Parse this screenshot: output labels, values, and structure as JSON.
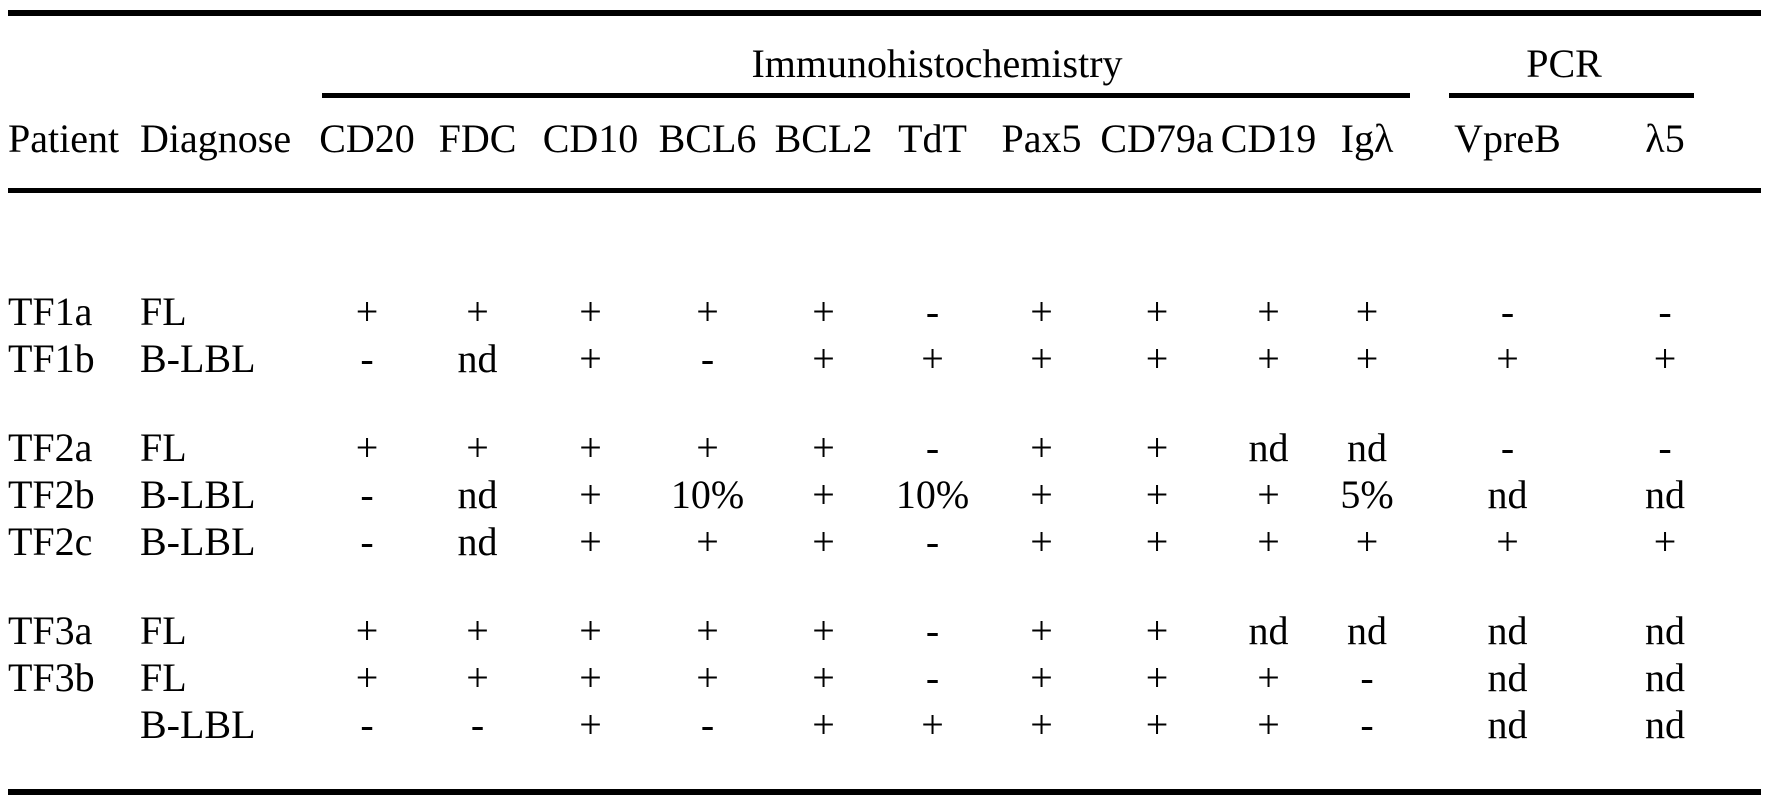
{
  "table": {
    "group_headers": [
      {
        "label": "Immunohistochemistry"
      },
      {
        "label": "PCR"
      }
    ],
    "columns": [
      "Patient",
      "Diagnose",
      "CD20",
      "FDC",
      "CD10",
      "BCL6",
      "BCL2",
      "TdT",
      "Pax5",
      "CD79a",
      "CD19",
      "Igλ",
      "VpreB",
      "λ5"
    ],
    "rows": [
      {
        "group": 1,
        "patient": "TF1a",
        "diagnose": "FL",
        "values": [
          "+",
          "+",
          "+",
          "+",
          "+",
          "-",
          "+",
          "+",
          "+",
          "+",
          "-",
          "-"
        ]
      },
      {
        "group": 1,
        "patient": "TF1b",
        "diagnose": "B-LBL",
        "values": [
          "-",
          "nd",
          "+",
          "-",
          "+",
          "+",
          "+",
          "+",
          "+",
          "+",
          "+",
          "+"
        ]
      },
      {
        "group": 2,
        "patient": "TF2a",
        "diagnose": "FL",
        "values": [
          "+",
          "+",
          "+",
          "+",
          "+",
          "-",
          "+",
          "+",
          "nd",
          "nd",
          "-",
          "-"
        ]
      },
      {
        "group": 2,
        "patient": "TF2b",
        "diagnose": "B-LBL",
        "values": [
          "-",
          "nd",
          "+",
          "10%",
          "+",
          "10%",
          "+",
          "+",
          "+",
          "5%",
          "nd",
          "nd"
        ]
      },
      {
        "group": 2,
        "patient": "TF2c",
        "diagnose": "B-LBL",
        "values": [
          "-",
          "nd",
          "+",
          "+",
          "+",
          "-",
          "+",
          "+",
          "+",
          "+",
          "+",
          "+"
        ]
      },
      {
        "group": 3,
        "patient": "TF3a",
        "diagnose": "FL",
        "values": [
          "+",
          "+",
          "+",
          "+",
          "+",
          "-",
          "+",
          "+",
          "nd",
          "nd",
          "nd",
          "nd"
        ]
      },
      {
        "group": 3,
        "patient": "TF3b",
        "diagnose": "FL",
        "values": [
          "+",
          "+",
          "+",
          "+",
          "+",
          "-",
          "+",
          "+",
          "+",
          "-",
          "nd",
          "nd"
        ]
      },
      {
        "group": 3,
        "patient": "",
        "diagnose": "B-LBL",
        "values": [
          "-",
          "-",
          "+",
          "-",
          "+",
          "+",
          "+",
          "+",
          "+",
          "-",
          "nd",
          "nd"
        ]
      }
    ]
  }
}
